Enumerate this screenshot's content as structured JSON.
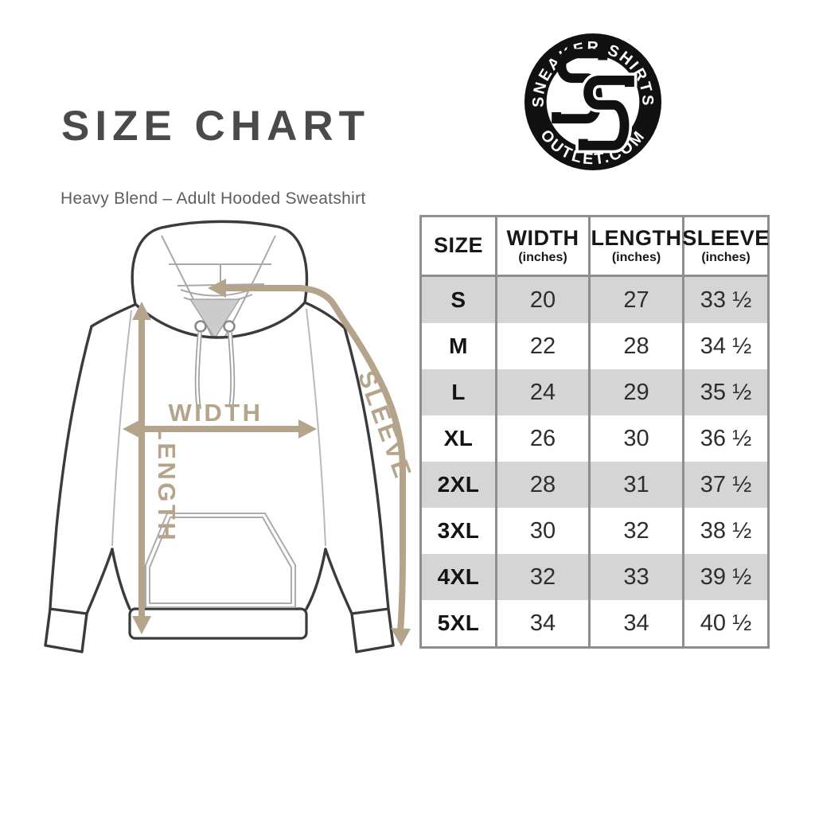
{
  "header": {
    "title": "SIZE CHART",
    "subtitle": "Heavy Blend – Adult Hooded Sweatshirt"
  },
  "logo": {
    "top_text": "SNEAKER SHIRTS",
    "bottom_text": "OUTLET.COM",
    "monogram": "SS"
  },
  "diagram": {
    "width_label": "WIDTH",
    "length_label": "LENGTH",
    "sleeve_label": "SLEEVE",
    "arrow_color": "#b5a48c",
    "outline_color": "#3b3b3b"
  },
  "table": {
    "columns": [
      {
        "label": "SIZE",
        "sub": ""
      },
      {
        "label": "WIDTH",
        "sub": "(inches)"
      },
      {
        "label": "LENGTH",
        "sub": "(inches)"
      },
      {
        "label": "SLEEVE",
        "sub": "(inches)"
      }
    ],
    "colors": {
      "row_alt": "#d5d5d5",
      "border": "#8e8e8e"
    }
  },
  "chart_data": {
    "type": "table",
    "title": "SIZE CHART",
    "subtitle": "Heavy Blend – Adult Hooded Sweatshirt",
    "columns": [
      "SIZE",
      "WIDTH (inches)",
      "LENGTH (inches)",
      "SLEEVE (inches)"
    ],
    "rows": [
      [
        "S",
        "20",
        "27",
        "33 ½"
      ],
      [
        "M",
        "22",
        "28",
        "34 ½"
      ],
      [
        "L",
        "24",
        "29",
        "35 ½"
      ],
      [
        "XL",
        "26",
        "30",
        "36 ½"
      ],
      [
        "2XL",
        "28",
        "31",
        "37 ½"
      ],
      [
        "3XL",
        "30",
        "32",
        "38 ½"
      ],
      [
        "4XL",
        "32",
        "33",
        "39 ½"
      ],
      [
        "5XL",
        "34",
        "34",
        "40 ½"
      ]
    ]
  }
}
